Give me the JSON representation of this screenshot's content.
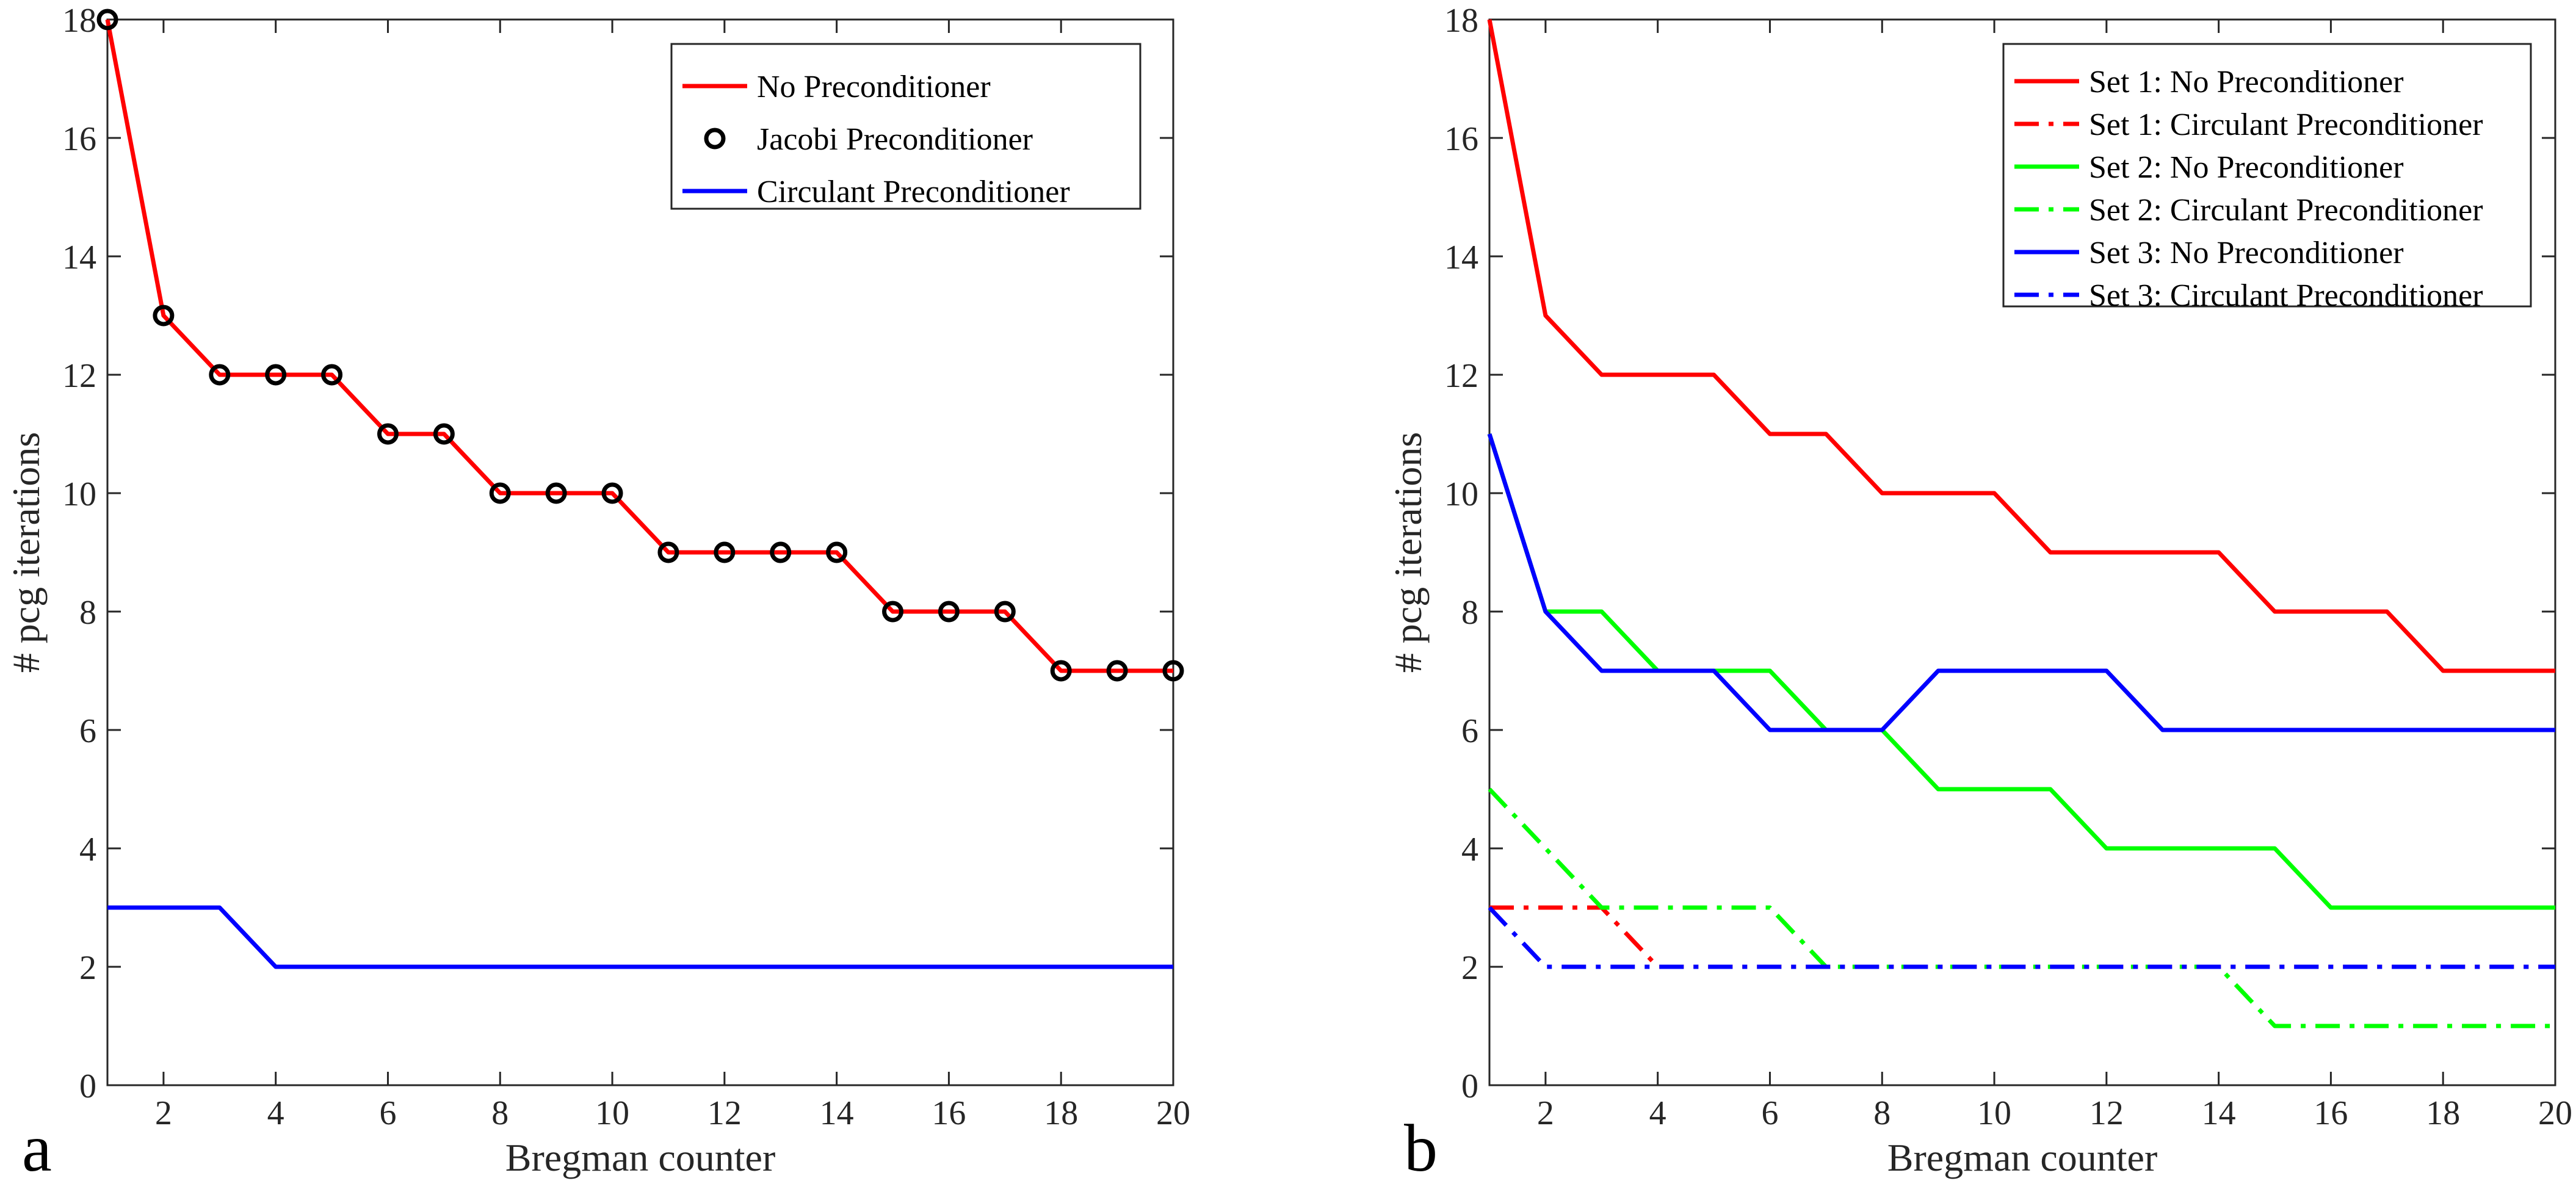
{
  "chart_data": [
    {
      "panel_label": "a",
      "type": "line",
      "xlabel": "Bregman counter",
      "ylabel": "# pcg iterations",
      "xlim": [
        1,
        20
      ],
      "ylim": [
        0,
        18
      ],
      "xticks": [
        "2",
        "4",
        "6",
        "8",
        "10",
        "12",
        "14",
        "16",
        "18",
        "20"
      ],
      "yticks": [
        "0",
        "2",
        "4",
        "6",
        "8",
        "10",
        "12",
        "14",
        "16",
        "18"
      ],
      "legend_position": "top-right",
      "x": [
        1,
        2,
        3,
        4,
        5,
        6,
        7,
        8,
        9,
        10,
        11,
        12,
        13,
        14,
        15,
        16,
        17,
        18,
        19,
        20
      ],
      "series": [
        {
          "name": "No Preconditioner",
          "color": "#ff0000",
          "style": "solid",
          "marker": "none",
          "values": [
            18,
            13,
            12,
            12,
            12,
            11,
            11,
            10,
            10,
            10,
            9,
            9,
            9,
            9,
            8,
            8,
            8,
            7,
            7,
            7
          ]
        },
        {
          "name": "Jacobi Preconditioner",
          "color": "#000000",
          "style": "none",
          "marker": "circle",
          "values": [
            18,
            13,
            12,
            12,
            12,
            11,
            11,
            10,
            10,
            10,
            9,
            9,
            9,
            9,
            8,
            8,
            8,
            7,
            7,
            7
          ]
        },
        {
          "name": "Circulant Preconditioner",
          "color": "#0000ff",
          "style": "solid",
          "marker": "none",
          "values": [
            3,
            3,
            3,
            2,
            2,
            2,
            2,
            2,
            2,
            2,
            2,
            2,
            2,
            2,
            2,
            2,
            2,
            2,
            2,
            2
          ]
        }
      ]
    },
    {
      "panel_label": "b",
      "type": "line",
      "xlabel": "Bregman counter",
      "ylabel": "# pcg iterations",
      "xlim": [
        1,
        20
      ],
      "ylim": [
        0,
        18
      ],
      "xticks": [
        "2",
        "4",
        "6",
        "8",
        "10",
        "12",
        "14",
        "16",
        "18",
        "20"
      ],
      "yticks": [
        "0",
        "2",
        "4",
        "6",
        "8",
        "10",
        "12",
        "14",
        "16",
        "18"
      ],
      "legend_position": "top-right",
      "x": [
        1,
        2,
        3,
        4,
        5,
        6,
        7,
        8,
        9,
        10,
        11,
        12,
        13,
        14,
        15,
        16,
        17,
        18,
        19,
        20
      ],
      "series": [
        {
          "name": "Set 1: No Preconditioner",
          "color": "#ff0000",
          "style": "solid",
          "marker": "none",
          "values": [
            18,
            13,
            12,
            12,
            12,
            11,
            11,
            10,
            10,
            10,
            9,
            9,
            9,
            9,
            8,
            8,
            8,
            7,
            7,
            7
          ]
        },
        {
          "name": "Set 1: Circulant Preconditioner",
          "color": "#ff0000",
          "style": "dashdot",
          "marker": "none",
          "values": [
            3,
            3,
            3,
            2,
            2,
            2,
            2,
            2,
            2,
            2,
            2,
            2,
            2,
            2,
            2,
            2,
            2,
            2,
            2,
            2
          ]
        },
        {
          "name": "Set 2: No Preconditioner",
          "color": "#00ff00",
          "style": "solid",
          "marker": "none",
          "values": [
            11,
            8,
            8,
            7,
            7,
            7,
            6,
            6,
            5,
            5,
            5,
            4,
            4,
            4,
            4,
            3,
            3,
            3,
            3,
            3
          ]
        },
        {
          "name": "Set 2: Circulant Preconditioner",
          "color": "#00ff00",
          "style": "dashdot",
          "marker": "none",
          "values": [
            5,
            4,
            3,
            3,
            3,
            3,
            2,
            2,
            2,
            2,
            2,
            2,
            2,
            2,
            1,
            1,
            1,
            1,
            1,
            1
          ]
        },
        {
          "name": "Set 3: No Preconditioner",
          "color": "#0000ff",
          "style": "solid",
          "marker": "none",
          "values": [
            11,
            8,
            7,
            7,
            7,
            6,
            6,
            6,
            7,
            7,
            7,
            7,
            6,
            6,
            6,
            6,
            6,
            6,
            6,
            6
          ]
        },
        {
          "name": "Set 3: Circulant Preconditioner",
          "color": "#0000ff",
          "style": "dashdot",
          "marker": "none",
          "values": [
            3,
            2,
            2,
            2,
            2,
            2,
            2,
            2,
            2,
            2,
            2,
            2,
            2,
            2,
            2,
            2,
            2,
            2,
            2,
            2
          ]
        }
      ]
    }
  ]
}
